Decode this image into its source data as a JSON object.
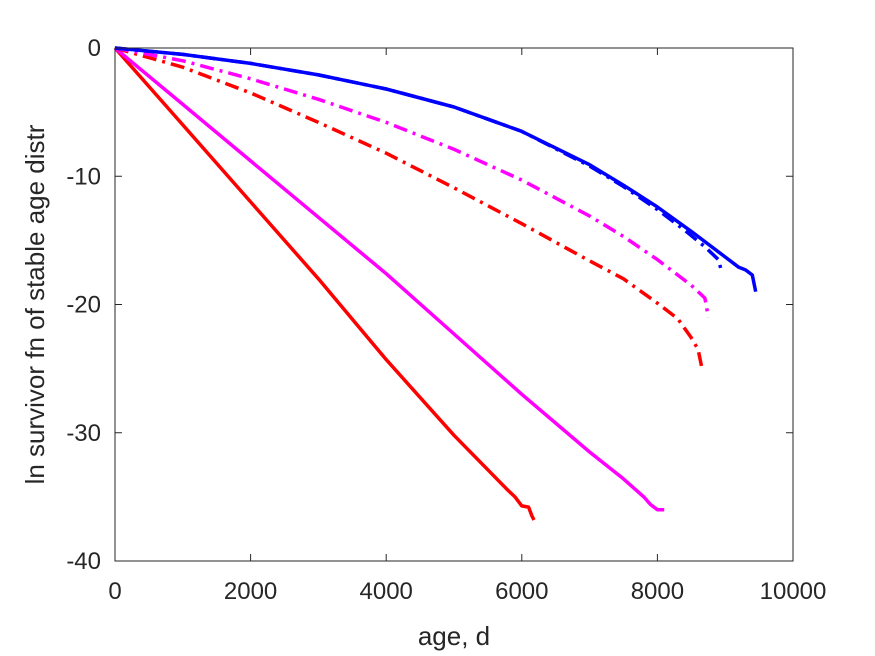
{
  "chart_data": {
    "type": "line",
    "xlabel": "age, d",
    "ylabel": "ln survivor fn of stable age distr",
    "xlim": [
      0,
      10000
    ],
    "ylim": [
      -40,
      0
    ],
    "xticks": [
      0,
      2000,
      4000,
      6000,
      8000,
      10000
    ],
    "yticks": [
      -40,
      -30,
      -20,
      -10,
      0
    ],
    "xtick_labels": [
      "0",
      "2000",
      "4000",
      "6000",
      "8000",
      "10000"
    ],
    "ytick_labels": [
      "-40",
      "-30",
      "-20",
      "-10",
      "0"
    ],
    "grid": false,
    "series": [
      {
        "color": "#ff0000",
        "style": "solid",
        "x": [
          0,
          1000,
          2000,
          3000,
          4000,
          5000,
          5800,
          5900,
          6000,
          6100,
          6150,
          6180
        ],
        "y": [
          0,
          -6.0,
          -12.0,
          -18.0,
          -24.3,
          -30.2,
          -34.5,
          -35.0,
          -35.7,
          -35.8,
          -36.5,
          -36.8
        ]
      },
      {
        "color": "#ff00ff",
        "style": "solid",
        "x": [
          0,
          1000,
          2000,
          3000,
          4000,
          5000,
          6000,
          7000,
          7500,
          7800,
          7900,
          8000,
          8100
        ],
        "y": [
          0,
          -4.4,
          -8.8,
          -13.2,
          -17.6,
          -22.3,
          -27.0,
          -31.5,
          -33.6,
          -35.0,
          -35.6,
          -36.0,
          -36.0
        ]
      },
      {
        "color": "#ff0000",
        "style": "dashdot",
        "x": [
          0,
          1000,
          2000,
          3000,
          4000,
          5000,
          6000,
          7000,
          7500,
          8000,
          8300,
          8500,
          8600,
          8650
        ],
        "y": [
          0,
          -1.5,
          -3.5,
          -5.8,
          -8.2,
          -10.9,
          -13.7,
          -16.6,
          -18.0,
          -19.9,
          -21.1,
          -22.6,
          -23.5,
          -24.8
        ]
      },
      {
        "color": "#ff00ff",
        "style": "dashdot",
        "x": [
          0,
          1000,
          2000,
          3000,
          4000,
          5000,
          6000,
          7000,
          7500,
          8000,
          8500,
          8700,
          8750
        ],
        "y": [
          0,
          -1.0,
          -2.4,
          -4.0,
          -5.8,
          -7.9,
          -10.3,
          -13.1,
          -14.7,
          -16.5,
          -18.5,
          -19.5,
          -21.0
        ]
      },
      {
        "color": "#0000ff",
        "style": "dashdot",
        "x": [
          0,
          1000,
          2000,
          3000,
          4000,
          5000,
          6000,
          7000,
          7500,
          8000,
          8400,
          8700,
          8900,
          8950
        ],
        "y": [
          0,
          -0.5,
          -1.2,
          -2.1,
          -3.2,
          -4.6,
          -6.5,
          -9.2,
          -10.8,
          -12.6,
          -14.2,
          -15.5,
          -16.5,
          -17.5
        ]
      },
      {
        "color": "#0000ff",
        "style": "solid",
        "x": [
          0,
          1000,
          2000,
          3000,
          4000,
          5000,
          6000,
          7000,
          7500,
          8000,
          8500,
          9000,
          9200,
          9300,
          9400,
          9450
        ],
        "y": [
          0,
          -0.5,
          -1.2,
          -2.1,
          -3.2,
          -4.6,
          -6.5,
          -9.1,
          -10.7,
          -12.4,
          -14.3,
          -16.3,
          -17.1,
          -17.3,
          -17.7,
          -19.0
        ]
      }
    ]
  }
}
